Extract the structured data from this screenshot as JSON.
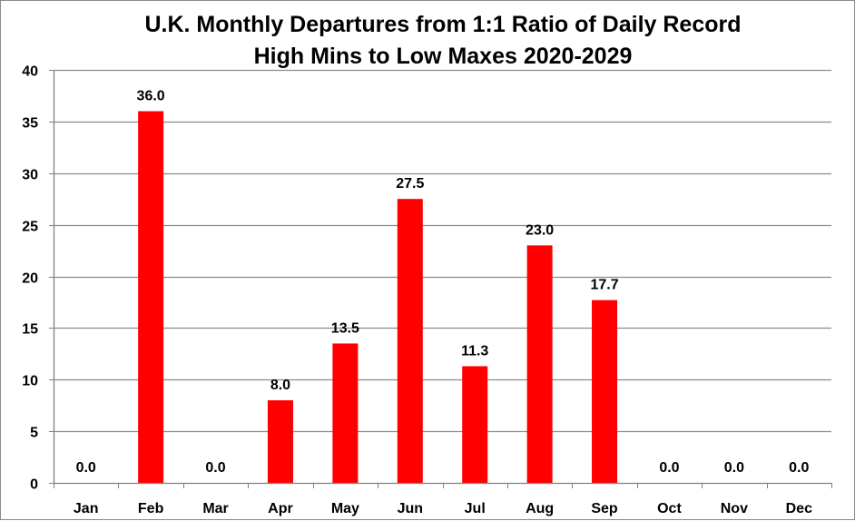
{
  "chart_data": {
    "type": "bar",
    "title": "U.K. Monthly Departures from 1:1 Ratio of Daily Record High Mins to Low Maxes 2020-2029",
    "title_lines": [
      "U.K. Monthly Departures from 1:1 Ratio of Daily Record",
      "High Mins to Low Maxes 2020-2029"
    ],
    "categories": [
      "Jan",
      "Feb",
      "Mar",
      "Apr",
      "May",
      "Jun",
      "Jul",
      "Aug",
      "Sep",
      "Oct",
      "Nov",
      "Dec"
    ],
    "values": [
      0.0,
      36.0,
      0.0,
      8.0,
      13.5,
      27.5,
      11.3,
      23.0,
      17.7,
      0.0,
      0.0,
      0.0
    ],
    "data_labels": [
      "0.0",
      "36.0",
      "0.0",
      "8.0",
      "13.5",
      "27.5",
      "11.3",
      "23.0",
      "17.7",
      "0.0",
      "0.0",
      "0.0"
    ],
    "xlabel": "",
    "ylabel": "",
    "ylim": [
      0,
      40
    ],
    "yticks": [
      0,
      5,
      10,
      15,
      20,
      25,
      30,
      35,
      40
    ],
    "grid": true,
    "legend": "none",
    "bar_color": "#ff0000",
    "grid_color": "#8c8c8c"
  }
}
